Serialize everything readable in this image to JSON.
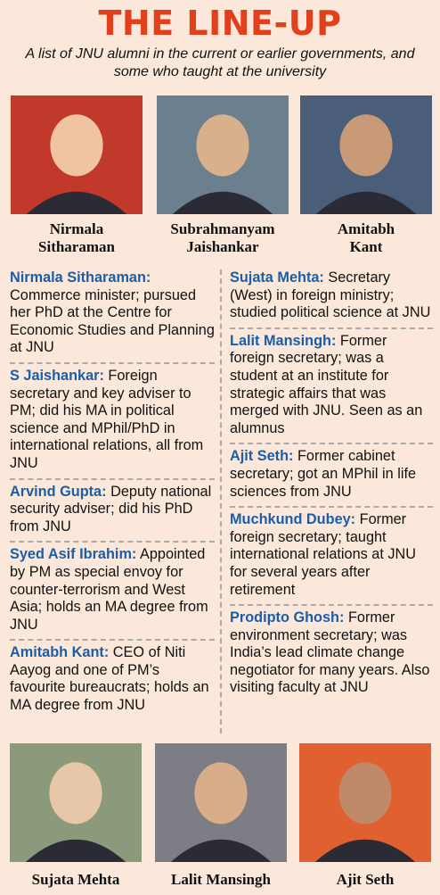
{
  "header": {
    "title": "THE LINE-UP",
    "subtitle": "A list of JNU alumni in the current or earlier governments, and some who taught at the university"
  },
  "top_people": [
    {
      "name": "Nirmala Sitharaman"
    },
    {
      "name": "Subrahmanyam Jaishankar"
    },
    {
      "name": "Amitabh Kant"
    }
  ],
  "left_entries": [
    {
      "name": "Nirmala Sitharaman:",
      "text": "Commerce minister; pursued her PhD at the Centre for Economic Studies and Planning at JNU"
    },
    {
      "name": "S Jaishankar:",
      "text": "Foreign secretary and key adviser to PM; did his MA in political science and MPhil/PhD in international relations, all from JNU"
    },
    {
      "name": "Arvind Gupta:",
      "text": "Deputy national security adviser; did his PhD from JNU"
    },
    {
      "name": "Syed Asif Ibrahim:",
      "text": "Appointed by PM as special envoy for counter-terrorism and West Asia; holds an MA degree from JNU"
    },
    {
      "name": "Amitabh Kant:",
      "text": "CEO of Niti Aayog and one of PM’s favourite bureaucrats; holds an MA degree from JNU"
    }
  ],
  "right_entries": [
    {
      "name": "Sujata Mehta:",
      "text": "Secretary (West) in foreign ministry; studied political science at JNU"
    },
    {
      "name": "Lalit Mansingh:",
      "text": "Former foreign secretary; was a student at an institute for strategic affairs that was merged with JNU. Seen as an alumnus"
    },
    {
      "name": "Ajit Seth:",
      "text": "Former cabinet secretary; got an MPhil in life sciences from JNU"
    },
    {
      "name": "Muchkund Dubey:",
      "text": "Former foreign secretary; taught international relations at JNU for several years after retirement"
    },
    {
      "name": "Prodipto Ghosh:",
      "text": "Former environment secretary; was India’s lead climate change negotiator for many years. Also visiting faculty at JNU"
    }
  ],
  "bottom_people": [
    {
      "name": "Sujata Mehta"
    },
    {
      "name": "Lalit Mansingh"
    },
    {
      "name": "Ajit Seth"
    }
  ]
}
